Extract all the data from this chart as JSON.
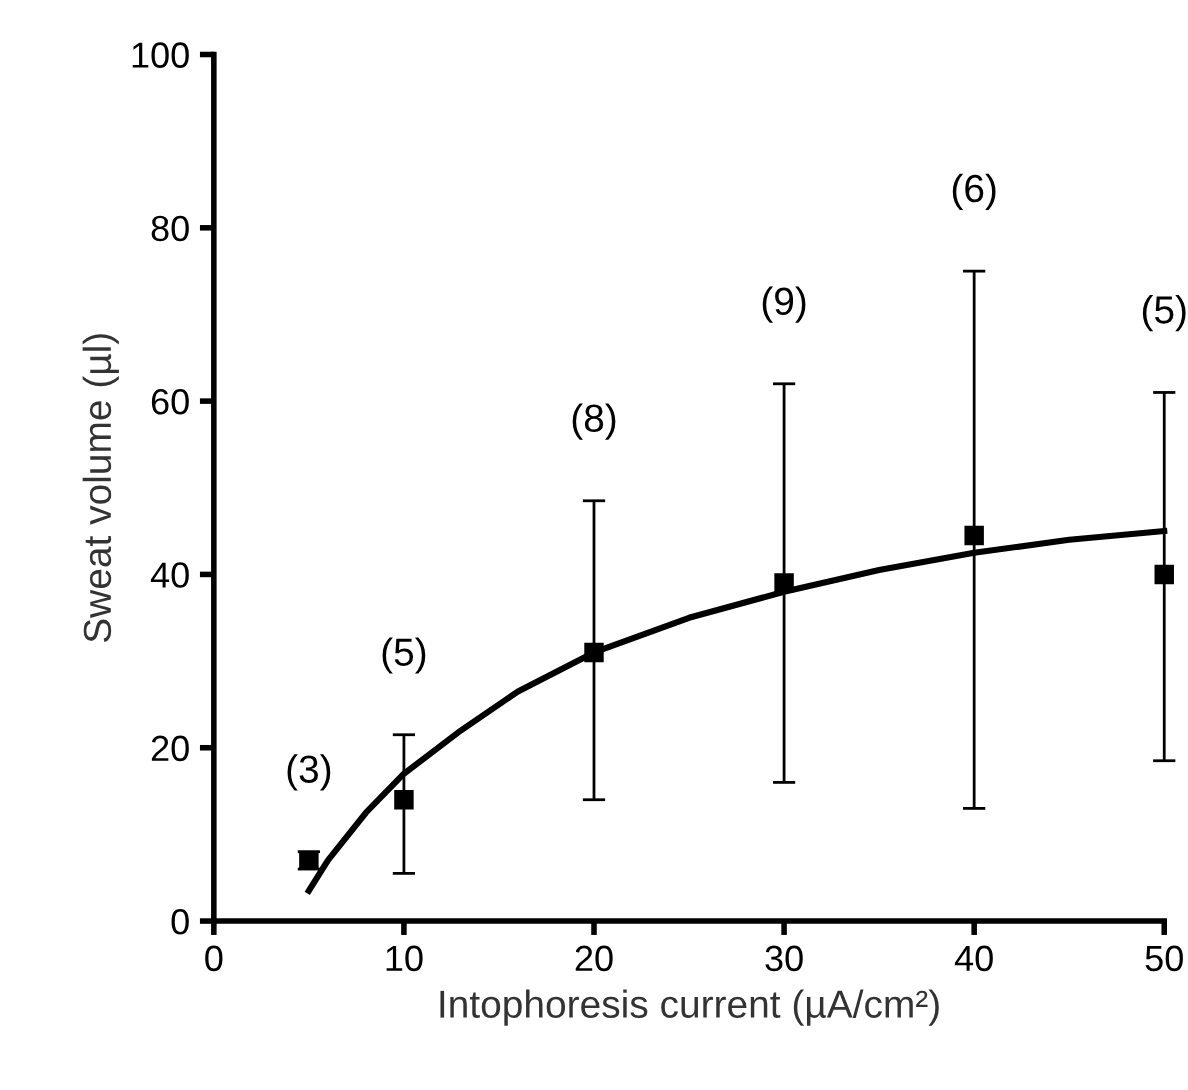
{
  "chart_data": {
    "type": "scatter",
    "xlabel": "Intophoresis current (µA/cm²)",
    "ylabel": "Sweat volume (µl)",
    "xlim": [
      0,
      50
    ],
    "ylim": [
      0,
      100
    ],
    "xticks": [
      0,
      10,
      20,
      30,
      40,
      50
    ],
    "yticks": [
      0,
      20,
      40,
      60,
      80,
      100
    ],
    "grid": false,
    "series": [
      {
        "marker": "square",
        "color": "#000000",
        "x": [
          5,
          10,
          20,
          30,
          40,
          50
        ],
        "values": [
          7,
          14,
          31,
          39,
          44.5,
          40
        ],
        "errors": [
          [
            6,
            8
          ],
          [
            5.5,
            21.5
          ],
          [
            14,
            48.5
          ],
          [
            16,
            62
          ],
          [
            13,
            75
          ],
          [
            18.5,
            61
          ]
        ]
      },
      {
        "type": "line",
        "marker": "none",
        "color": "#000000",
        "line_style": "solid",
        "x": [
          5,
          6,
          8,
          10,
          13,
          16,
          20,
          25,
          30,
          35,
          40,
          45,
          50
        ],
        "values": [
          3.5,
          7,
          12.5,
          17,
          22,
          26.5,
          31,
          35,
          38,
          40.5,
          42.5,
          44,
          45
        ]
      }
    ],
    "annotations": [
      "(3)",
      "(5)",
      "(8)",
      "(9)",
      "(6)",
      "(5)"
    ]
  }
}
